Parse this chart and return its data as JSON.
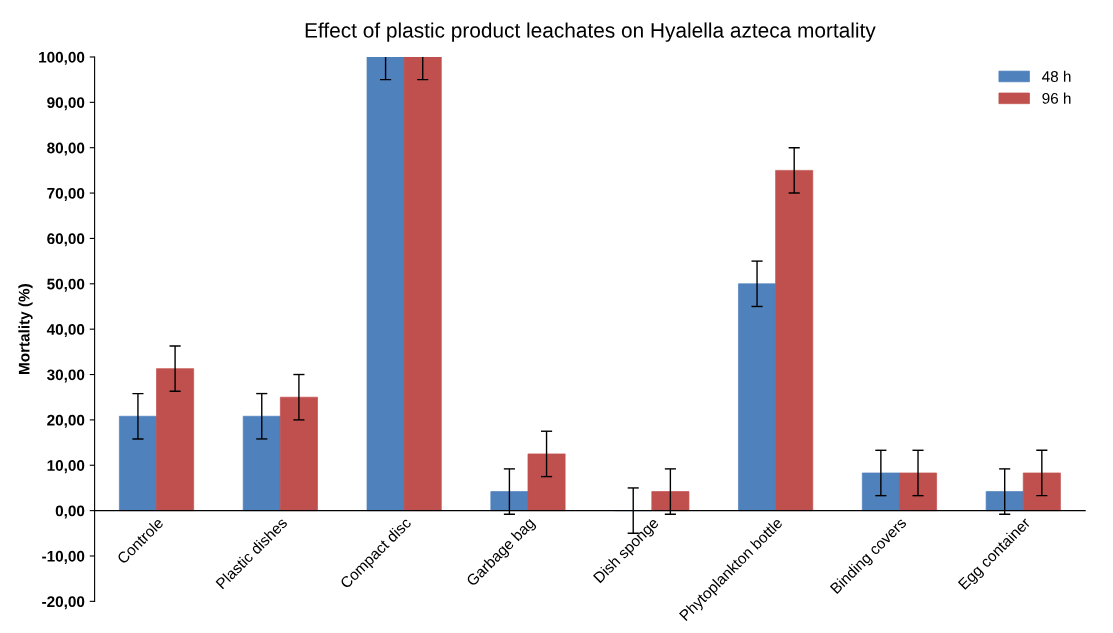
{
  "chart_data": {
    "type": "bar",
    "title": "Effect of plastic product leachates on Hyalella azteca mortality",
    "ylabel": "Mortality (%)",
    "categories": [
      "Controle",
      "Plastic dishes",
      "Compact disc",
      "Garbage bag",
      "Dish sponge",
      "Phytoplankton bottle",
      "Binding covers",
      "Egg container"
    ],
    "series": [
      {
        "name": "48 h",
        "color": "#4f81bd",
        "values": [
          20.8,
          20.8,
          100,
          4.2,
          0,
          50,
          8.3,
          4.2
        ],
        "errors": [
          5,
          5,
          5,
          5,
          5,
          5,
          5,
          5
        ]
      },
      {
        "name": "96 h",
        "color": "#c0504d",
        "values": [
          31.3,
          25,
          100,
          12.5,
          4.2,
          75,
          8.3,
          8.3
        ],
        "errors": [
          5,
          5,
          5,
          5,
          5,
          5,
          5,
          5
        ]
      }
    ],
    "ylim": [
      -20,
      100
    ],
    "yticks": [
      {
        "value": -20,
        "label": "-20,00"
      },
      {
        "value": -10,
        "label": "-10,00"
      },
      {
        "value": 0,
        "label": "0,00"
      },
      {
        "value": 10,
        "label": "10,00"
      },
      {
        "value": 20,
        "label": "20,00"
      },
      {
        "value": 30,
        "label": "30,00"
      },
      {
        "value": 40,
        "label": "40,00"
      },
      {
        "value": 50,
        "label": "50,00"
      },
      {
        "value": 60,
        "label": "60,00"
      },
      {
        "value": 70,
        "label": "70,00"
      },
      {
        "value": 80,
        "label": "80,00"
      },
      {
        "value": 90,
        "label": "90,00"
      },
      {
        "value": 100,
        "label": "100,00"
      }
    ],
    "grid": false,
    "legend": "top right"
  }
}
